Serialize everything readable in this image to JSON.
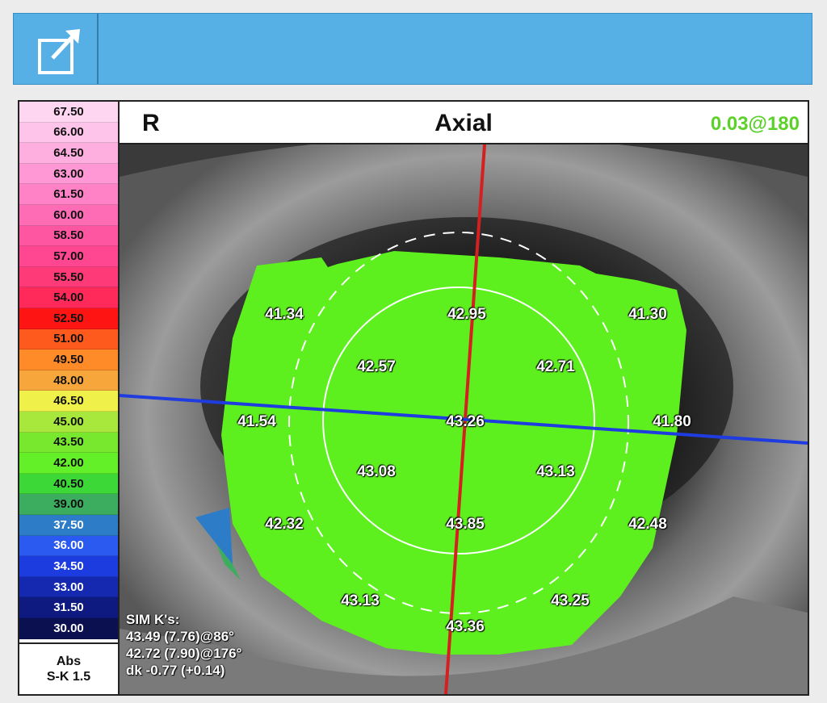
{
  "window": {
    "icon": "external-link-icon"
  },
  "legend": {
    "steps": [
      {
        "label": "67.50",
        "color": "#ffd6f2"
      },
      {
        "label": "66.00",
        "color": "#ffc4ea"
      },
      {
        "label": "64.50",
        "color": "#ffaee0"
      },
      {
        "label": "63.00",
        "color": "#ff98d4"
      },
      {
        "label": "61.50",
        "color": "#ff82c6"
      },
      {
        "label": "60.00",
        "color": "#ff6cb6"
      },
      {
        "label": "58.50",
        "color": "#ff56a2"
      },
      {
        "label": "57.00",
        "color": "#ff4690"
      },
      {
        "label": "55.50",
        "color": "#ff3a78"
      },
      {
        "label": "54.00",
        "color": "#ff2a5a"
      },
      {
        "label": "52.50",
        "color": "#ff1414"
      },
      {
        "label": "51.00",
        "color": "#ff5a1e"
      },
      {
        "label": "49.50",
        "color": "#ff8a28"
      },
      {
        "label": "48.00",
        "color": "#f6a63a"
      },
      {
        "label": "46.50",
        "color": "#f0f04a"
      },
      {
        "label": "45.00",
        "color": "#a8e83c"
      },
      {
        "label": "43.50",
        "color": "#78e82e"
      },
      {
        "label": "42.00",
        "color": "#64f028"
      },
      {
        "label": "40.50",
        "color": "#3cd838"
      },
      {
        "label": "39.00",
        "color": "#3cac5e"
      },
      {
        "label": "37.50",
        "color": "#2c7cc8"
      },
      {
        "label": "36.00",
        "color": "#2a5af0"
      },
      {
        "label": "34.50",
        "color": "#1c3ce0"
      },
      {
        "label": "33.00",
        "color": "#1428b0"
      },
      {
        "label": "31.50",
        "color": "#0e1a80"
      },
      {
        "label": "30.00",
        "color": "#0a1050"
      }
    ],
    "foot_line1": "Abs",
    "foot_line2": "S-K 1.5"
  },
  "header": {
    "eye": "R",
    "title": "Axial",
    "axis_reading": "0.03@180",
    "axis_color": "#5bd12a"
  },
  "map": {
    "values": [
      "41.34",
      "42.95",
      "41.30",
      "42.57",
      "42.71",
      "41.54",
      "43.26",
      "41.80",
      "43.08",
      "43.13",
      "42.32",
      "43.85",
      "42.48",
      "43.13",
      "43.25",
      "43.36"
    ],
    "sim_k_title": "SIM K's:",
    "sim_k_line1": "43.49 (7.76)@86°",
    "sim_k_line2": "42.72 (7.90)@176°",
    "sim_k_line3": "dk -0.77 (+0.14)",
    "cornea_color": "#5ef01e",
    "vertical_axis_color": "#d42020",
    "horizontal_axis_color": "#1e3ce0"
  }
}
